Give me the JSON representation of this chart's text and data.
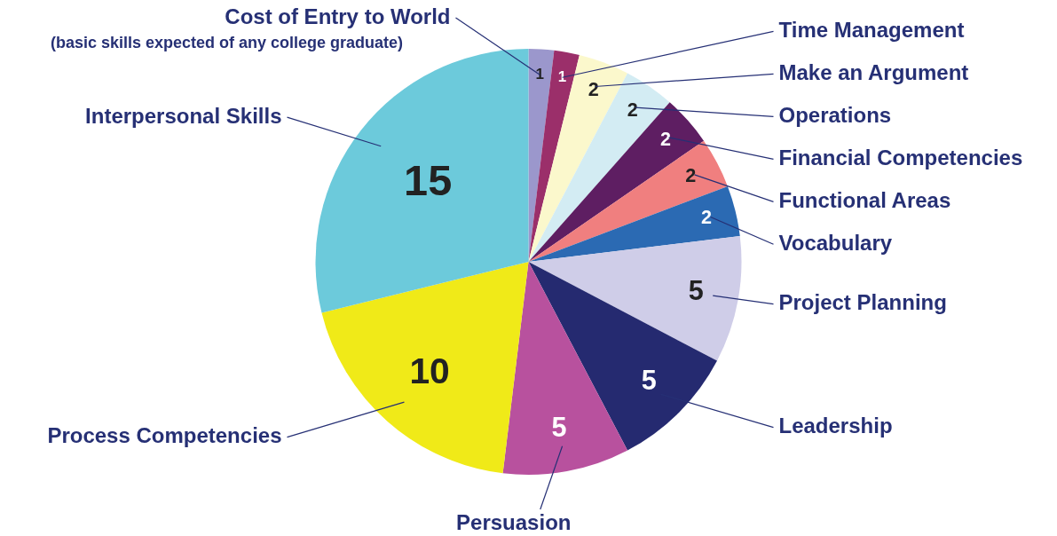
{
  "chart_data": {
    "type": "pie",
    "categories": [
      "Cost of Entry to World",
      "Time Management",
      "Make an Argument",
      "Operations",
      "Financial Competencies",
      "Functional Areas",
      "Vocabulary",
      "Project Planning",
      "Leadership",
      "Persuasion",
      "Process Competencies",
      "Interpersonal Skills"
    ],
    "values": [
      1,
      1,
      2,
      2,
      2,
      2,
      2,
      5,
      5,
      5,
      10,
      15
    ],
    "colors": [
      "#9b97cc",
      "#9b2f6a",
      "#fbf8cc",
      "#d3ecf3",
      "#5e1e62",
      "#f07f7f",
      "#2b6ab3",
      "#cfcde8",
      "#252a70",
      "#b8519e",
      "#f0ea18",
      "#6ccadb"
    ],
    "data_labels": true,
    "legend": false,
    "annotations": [
      {
        "text": "(basic skills expected of any college graduate)",
        "x": "Cost of Entry to World"
      }
    ]
  }
}
